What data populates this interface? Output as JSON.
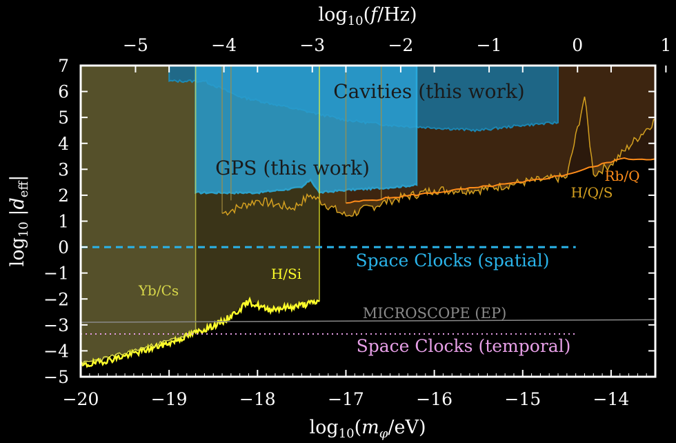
{
  "chart_data": {
    "type": "area",
    "xlabel_bottom": "log10(mφ/eV)",
    "xlabel_top": "log10(f/Hz)",
    "ylabel": "log10 |d_eff|",
    "xlim": [
      -20,
      -13.5
    ],
    "ylim": [
      -5,
      7
    ],
    "x_ticks": [
      -20,
      -19,
      -18,
      -17,
      -16,
      -15,
      -14
    ],
    "y_ticks": [
      -5,
      -4,
      -3,
      -2,
      -1,
      0,
      1,
      2,
      3,
      4,
      5,
      6,
      7
    ],
    "top_ticks": [
      -5,
      -4,
      -3,
      -2,
      -1,
      0,
      1
    ],
    "top_axis_relation": "log10(f/Hz) = log10(mφ/eV) + 14.38",
    "grid": false,
    "background": "#000000",
    "series": [
      {
        "name": "Yb/Cs",
        "color": "#d8d84a",
        "fill": "#55502a",
        "x": [
          -20,
          -19.5,
          -19,
          -18.7
        ],
        "y": [
          -4.5,
          -4.1,
          -3.6,
          -3.3
        ],
        "x_max": -18.7
      },
      {
        "name": "H/Si",
        "color": "#ffff2a",
        "fill": "#3a3418",
        "x": [
          -20,
          -19.5,
          -19.0,
          -18.7,
          -18.4,
          -18.2,
          -18.1,
          -17.9,
          -17.6,
          -17.3
        ],
        "y": [
          -4.6,
          -4.2,
          -3.7,
          -3.3,
          -2.9,
          -2.4,
          -2.1,
          -2.4,
          -2.3,
          -2.1
        ],
        "x_max": -17.3
      },
      {
        "name": "H/Q/S",
        "color": "#d4a020",
        "fill": "#4a3212",
        "x": [
          -18.4,
          -18.0,
          -17.6,
          -17.4,
          -17.0,
          -16.5,
          -16.0,
          -15.5,
          -15.0,
          -14.5,
          -14.3,
          -14.2,
          -14.0,
          -13.5
        ],
        "y": [
          1.3,
          1.8,
          1.5,
          2.0,
          1.2,
          1.8,
          2.2,
          2.2,
          2.5,
          2.7,
          5.8,
          2.8,
          3.2,
          4.9
        ]
      },
      {
        "name": "Rb/Q",
        "color": "#ff8c1a",
        "fill": "#3a2210",
        "x": [
          -17.0,
          -16.5,
          -16.0,
          -15.5,
          -15.0,
          -14.5,
          -14.2,
          -13.9,
          -13.5
        ],
        "y": [
          1.7,
          1.9,
          2.1,
          2.3,
          2.5,
          2.8,
          3.1,
          3.4,
          3.4
        ]
      },
      {
        "name": "GPS (this work)",
        "color": "#2ab4ea",
        "fill": "#2a9ed0",
        "x": [
          -18.7,
          -18.5,
          -18.0,
          -17.5,
          -17.4,
          -17.3,
          -17.0,
          -16.5,
          -16.2
        ],
        "y": [
          2.1,
          2.1,
          2.1,
          2.3,
          2.6,
          2.1,
          2.2,
          2.3,
          2.4
        ],
        "x_min": -18.7,
        "x_max": -16.2
      },
      {
        "name": "Cavities (this work)",
        "color": "#1a8fc0",
        "fill": "#1c6c90",
        "x": [
          -19.0,
          -18.6,
          -18.2,
          -17.8,
          -17.4,
          -17.0,
          -16.5,
          -16.0,
          -15.5,
          -15.0,
          -14.6
        ],
        "y": [
          6.4,
          6.4,
          5.8,
          5.5,
          5.2,
          4.9,
          4.7,
          4.6,
          4.5,
          4.7,
          4.8
        ],
        "x_min": -19.0,
        "x_max": -14.6
      },
      {
        "name": "MICROSCOPE (EP)",
        "color": "#8a8a8a",
        "x": [
          -20,
          -13.5
        ],
        "y": [
          -2.9,
          -2.8
        ]
      },
      {
        "name": "Space Clocks (spatial)",
        "color": "#2ab4ea",
        "linestyle": "dashed",
        "x": [
          -20,
          -14.4
        ],
        "y": [
          0,
          0
        ]
      },
      {
        "name": "Space Clocks (temporal)",
        "color": "#e8a0e8",
        "linestyle": "dotted",
        "x": [
          -20,
          -14.4
        ],
        "y": [
          -3.35,
          -3.35
        ]
      }
    ],
    "labels": {
      "cavities": "Cavities (this work)",
      "gps": "GPS (this work)",
      "space_spatial": "Space Clocks (spatial)",
      "space_temporal": "Space Clocks (temporal)",
      "microscope": "MICROSCOPE (EP)",
      "ybcs": "Yb/Cs",
      "hsi": "H/Si",
      "rbq": "Rb/Q",
      "hqs": "H/Q/S"
    },
    "label_colors": {
      "cavities": "#1a1a1a",
      "gps": "#1a1a1a",
      "space_spatial": "#2ab4ea",
      "space_temporal": "#e8a0e8",
      "microscope": "#8a8a8a",
      "ybcs": "#d8d84a",
      "hsi": "#ffff2a",
      "rbq": "#ff8c1a",
      "hqs": "#d4a020"
    }
  }
}
